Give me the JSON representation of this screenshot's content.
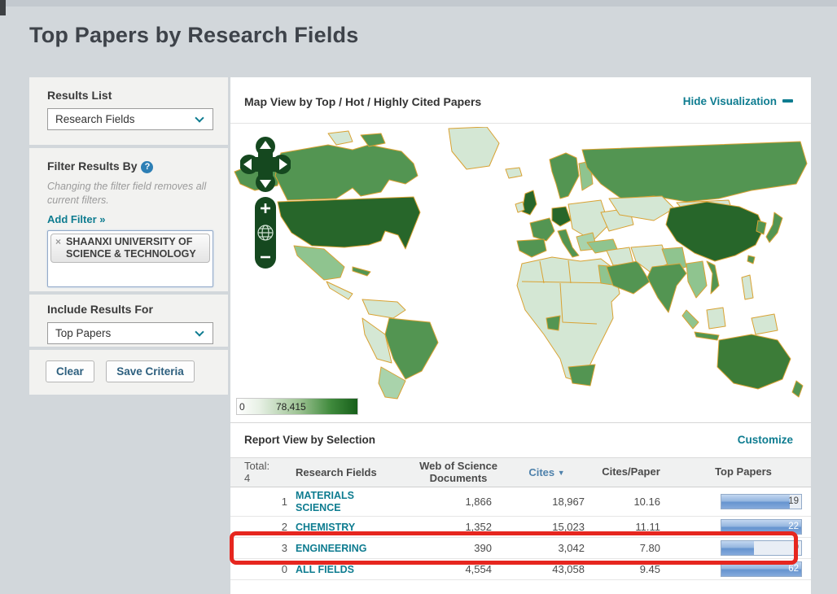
{
  "page": {
    "title": "Top Papers by Research Fields"
  },
  "sidebar": {
    "results_list": {
      "label": "Results List",
      "selected": "Research Fields"
    },
    "filter": {
      "label": "Filter Results By",
      "help": "?",
      "note": "Changing the filter field removes all current filters.",
      "add_filter": "Add Filter »",
      "chip": {
        "remove": "×",
        "label": "SHAANXI UNIVERSITY OF SCIENCE & TECHNOLOGY"
      }
    },
    "include_results": {
      "label": "Include Results For",
      "selected": "Top Papers"
    },
    "buttons": {
      "clear": "Clear",
      "save": "Save Criteria"
    }
  },
  "visualization": {
    "title": "Map View by Top / Hot / Highly Cited Papers",
    "hide_link": "Hide Visualization",
    "scale": {
      "min": "0",
      "max": "78,415"
    }
  },
  "report": {
    "title": "Report View by Selection",
    "customize_link": "Customize",
    "table": {
      "total_label": "Total:",
      "total_value": "4",
      "col_field": "Research Fields",
      "col_wos": "Web of Science Documents",
      "col_cites": "Cites",
      "col_cites_sort": "▼",
      "col_cpp": "Cites/Paper",
      "col_top": "Top Papers",
      "rows": [
        {
          "rank": "1",
          "field": "MATERIALS SCIENCE",
          "wos_documents": "1,866",
          "cites": "18,967",
          "cites_per_paper": "10.16",
          "top_papers": "19",
          "bar_pct": 86,
          "highlighted": false,
          "tall": true
        },
        {
          "rank": "2",
          "field": "CHEMISTRY",
          "wos_documents": "1,352",
          "cites": "15,023",
          "cites_per_paper": "11.11",
          "top_papers": "22",
          "bar_pct": 100,
          "highlighted": false,
          "tall": false
        },
        {
          "rank": "3",
          "field": "ENGINEERING",
          "wos_documents": "390",
          "cites": "3,042",
          "cites_per_paper": "7.80",
          "top_papers": "9",
          "bar_pct": 41,
          "highlighted": true,
          "tall": false
        },
        {
          "rank": "0",
          "field": "ALL FIELDS",
          "wos_documents": "4,554",
          "cites": "43,058",
          "cites_per_paper": "9.45",
          "top_papers": "62",
          "bar_pct": 100,
          "highlighted": false,
          "tall": false
        }
      ]
    }
  },
  "colors": {
    "accent_teal": "#0e7c90",
    "cites_sort_blue": "#4e81ab",
    "highlight_red": "#e6261f",
    "bar_blue": "#6694cf",
    "map_border_orange": "#d9a233",
    "map_green_dark": "#27662a",
    "map_green_medium": "#539552",
    "map_green_light": "#8fc48f",
    "map_green_pale": "#d4e7d4"
  }
}
